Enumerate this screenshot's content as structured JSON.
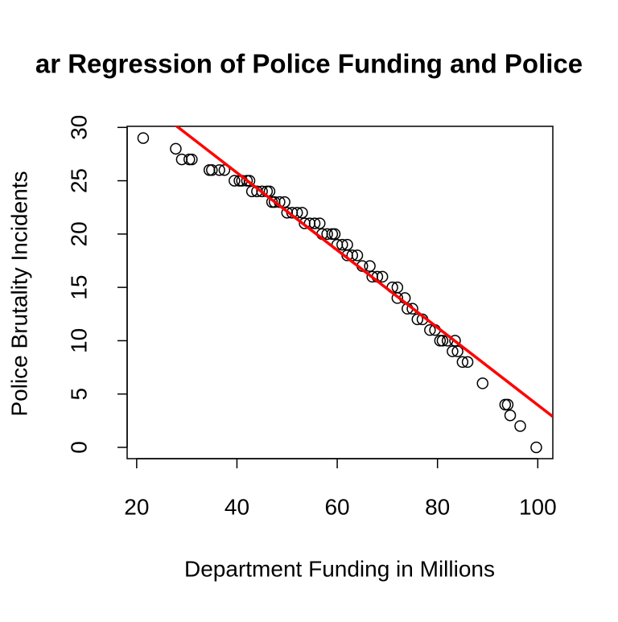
{
  "chart_data": {
    "type": "scatter",
    "title": "ar Regression of Police Funding and Police",
    "x_label": "Department Funding in Millions",
    "y_label": "Police Brutality Incidents",
    "x": [
      21.3,
      27.8,
      29,
      30.5,
      31,
      34.5,
      35,
      36.5,
      37.5,
      39.5,
      40.5,
      41,
      42,
      42.5,
      43,
      44,
      45,
      46,
      46.5,
      47,
      47.5,
      48.5,
      49.5,
      50,
      51,
      52,
      53,
      53.5,
      54.5,
      55.5,
      56.5,
      57,
      58,
      59,
      59.5,
      60,
      61,
      62,
      62,
      63,
      64,
      65,
      66.5,
      67,
      68,
      69,
      71,
      72,
      72,
      73.5,
      74,
      75,
      76,
      77,
      78.5,
      79.5,
      80.5,
      81,
      82,
      83,
      83.5,
      84,
      85,
      86,
      89,
      93.5,
      94,
      94.5,
      96.5,
      99.7
    ],
    "values": [
      29,
      28,
      27,
      27,
      27,
      26,
      26,
      26,
      26,
      25,
      25,
      25,
      25,
      25,
      24,
      24,
      24,
      24,
      24,
      23,
      23,
      23,
      23,
      22,
      22,
      22,
      22,
      21,
      21,
      21,
      21,
      20,
      20,
      20,
      20,
      19,
      19,
      19,
      18,
      18,
      18,
      17,
      17,
      16,
      16,
      16,
      15,
      15,
      14,
      14,
      13,
      13,
      12,
      12,
      11,
      11,
      10,
      10,
      10,
      9,
      10,
      9,
      8,
      8,
      6,
      4,
      4,
      3,
      2,
      0
    ],
    "color": "#000000",
    "regression": {
      "intercept": 40.27,
      "slope": -0.363,
      "color": "#ff0000"
    },
    "xlim": [
      18.1,
      103.0
    ],
    "ylim": [
      -1.06,
      30.1
    ],
    "xticks": [
      20,
      40,
      60,
      80,
      100
    ],
    "yticks": [
      0,
      5,
      10,
      15,
      20,
      25,
      30
    ]
  }
}
